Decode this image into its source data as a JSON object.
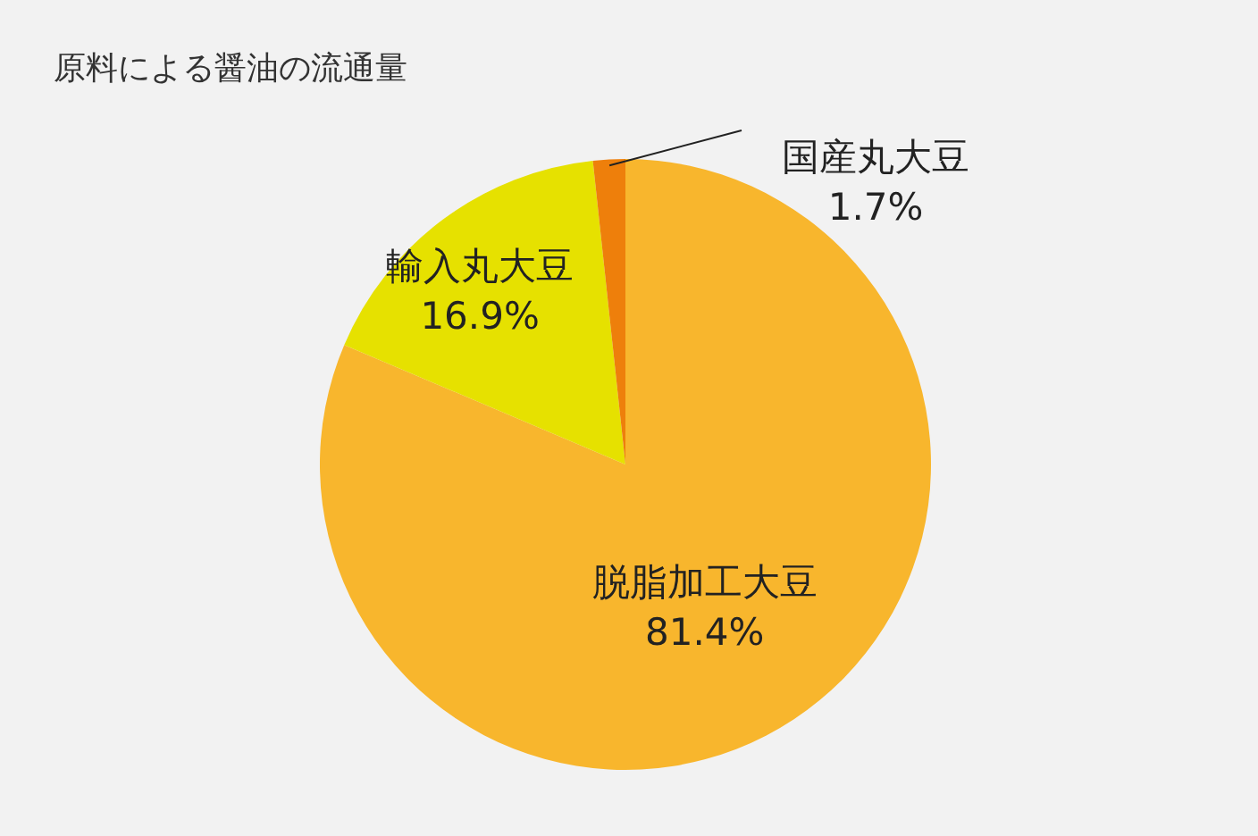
{
  "chart_data": {
    "type": "pie",
    "title": "原料による醤油の流通量",
    "categories": [
      "脱脂加工大豆",
      "輸入丸大豆",
      "国産丸大豆"
    ],
    "values": [
      81.4,
      16.9,
      1.7
    ],
    "value_labels": [
      "81.4%",
      "16.9%",
      "1.7%"
    ],
    "colors": [
      "#f8b62d",
      "#e6e100",
      "#ee7f0b"
    ]
  }
}
